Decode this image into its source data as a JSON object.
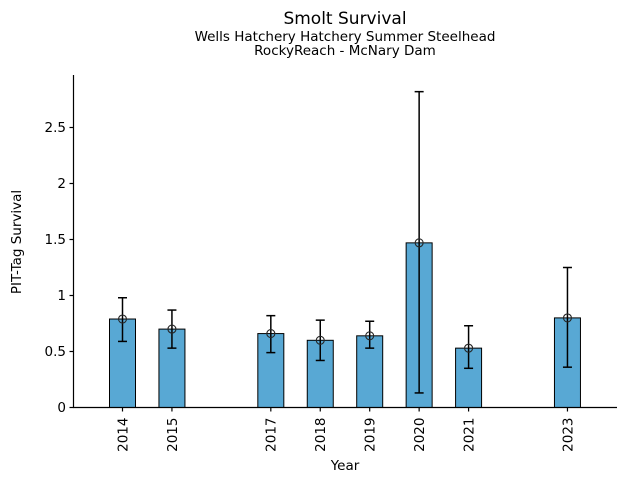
{
  "chart_data": {
    "type": "bar",
    "title": "Smolt Survival",
    "subtitle_line1": "Wells Hatchery Hatchery Summer Steelhead",
    "subtitle_line2": "RockyReach - McNary Dam",
    "xlabel": "Year",
    "ylabel": "PIT-Tag Survival",
    "categories": [
      2014,
      2015,
      2017,
      2018,
      2019,
      2020,
      2021,
      2023
    ],
    "values": [
      0.79,
      0.7,
      0.66,
      0.6,
      0.64,
      1.47,
      0.53,
      0.8
    ],
    "error_bar_min": [
      0.59,
      0.53,
      0.49,
      0.42,
      0.53,
      0.13,
      0.35,
      0.36
    ],
    "error_bar_max": [
      0.98,
      0.87,
      0.82,
      0.78,
      0.77,
      2.82,
      0.73,
      1.25
    ],
    "missing_years": [
      2016,
      2022
    ],
    "ylim": [
      0,
      2.97
    ],
    "yticks": [
      0,
      0.5,
      1,
      1.5,
      2,
      2.5
    ],
    "ytick_labels": [
      "0",
      "0.5",
      "1",
      "1.5",
      "2",
      "2.5"
    ],
    "grid": false,
    "legend": "none",
    "marker": "open-circle",
    "bar_color": "#58a8d4",
    "edge_color": "#000000",
    "error_color": "#000000",
    "marker_edge_color": "#262626",
    "background_color": "#ffffff"
  }
}
